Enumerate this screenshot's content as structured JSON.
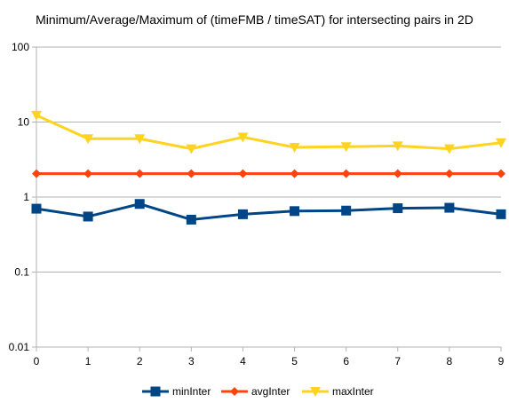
{
  "chart_data": {
    "type": "line",
    "title": "Minimum/Average/Maximum of (timeFMB / timeSAT) for intersecting pairs in 2D",
    "xlabel": "",
    "ylabel": "",
    "y_scale": "log",
    "ylim": [
      0.01,
      100
    ],
    "y_ticks": [
      "100",
      "10",
      "1",
      "0.1",
      "0.01"
    ],
    "y_tick_values": [
      100,
      10,
      1,
      0.1,
      0.01
    ],
    "x": [
      0,
      1,
      2,
      3,
      4,
      5,
      6,
      7,
      8,
      9
    ],
    "x_ticks": [
      "0",
      "1",
      "2",
      "3",
      "4",
      "5",
      "6",
      "7",
      "8",
      "9"
    ],
    "xlim": [
      0,
      9
    ],
    "grid": "horizontal",
    "legend_position": "bottom",
    "series": [
      {
        "name": "minInter",
        "color": "#004586",
        "marker": "square",
        "values": [
          0.7,
          0.55,
          0.81,
          0.5,
          0.59,
          0.65,
          0.66,
          0.71,
          0.72,
          0.59
        ]
      },
      {
        "name": "avgInter",
        "color": "#ff420e",
        "marker": "diamond",
        "values": [
          2.05,
          2.05,
          2.05,
          2.05,
          2.05,
          2.05,
          2.05,
          2.05,
          2.05,
          2.05
        ]
      },
      {
        "name": "maxInter",
        "color": "#ffd320",
        "marker": "triangle-down",
        "values": [
          12.3,
          6.0,
          6.0,
          4.4,
          6.3,
          4.6,
          4.7,
          4.8,
          4.4,
          5.3
        ]
      }
    ]
  }
}
